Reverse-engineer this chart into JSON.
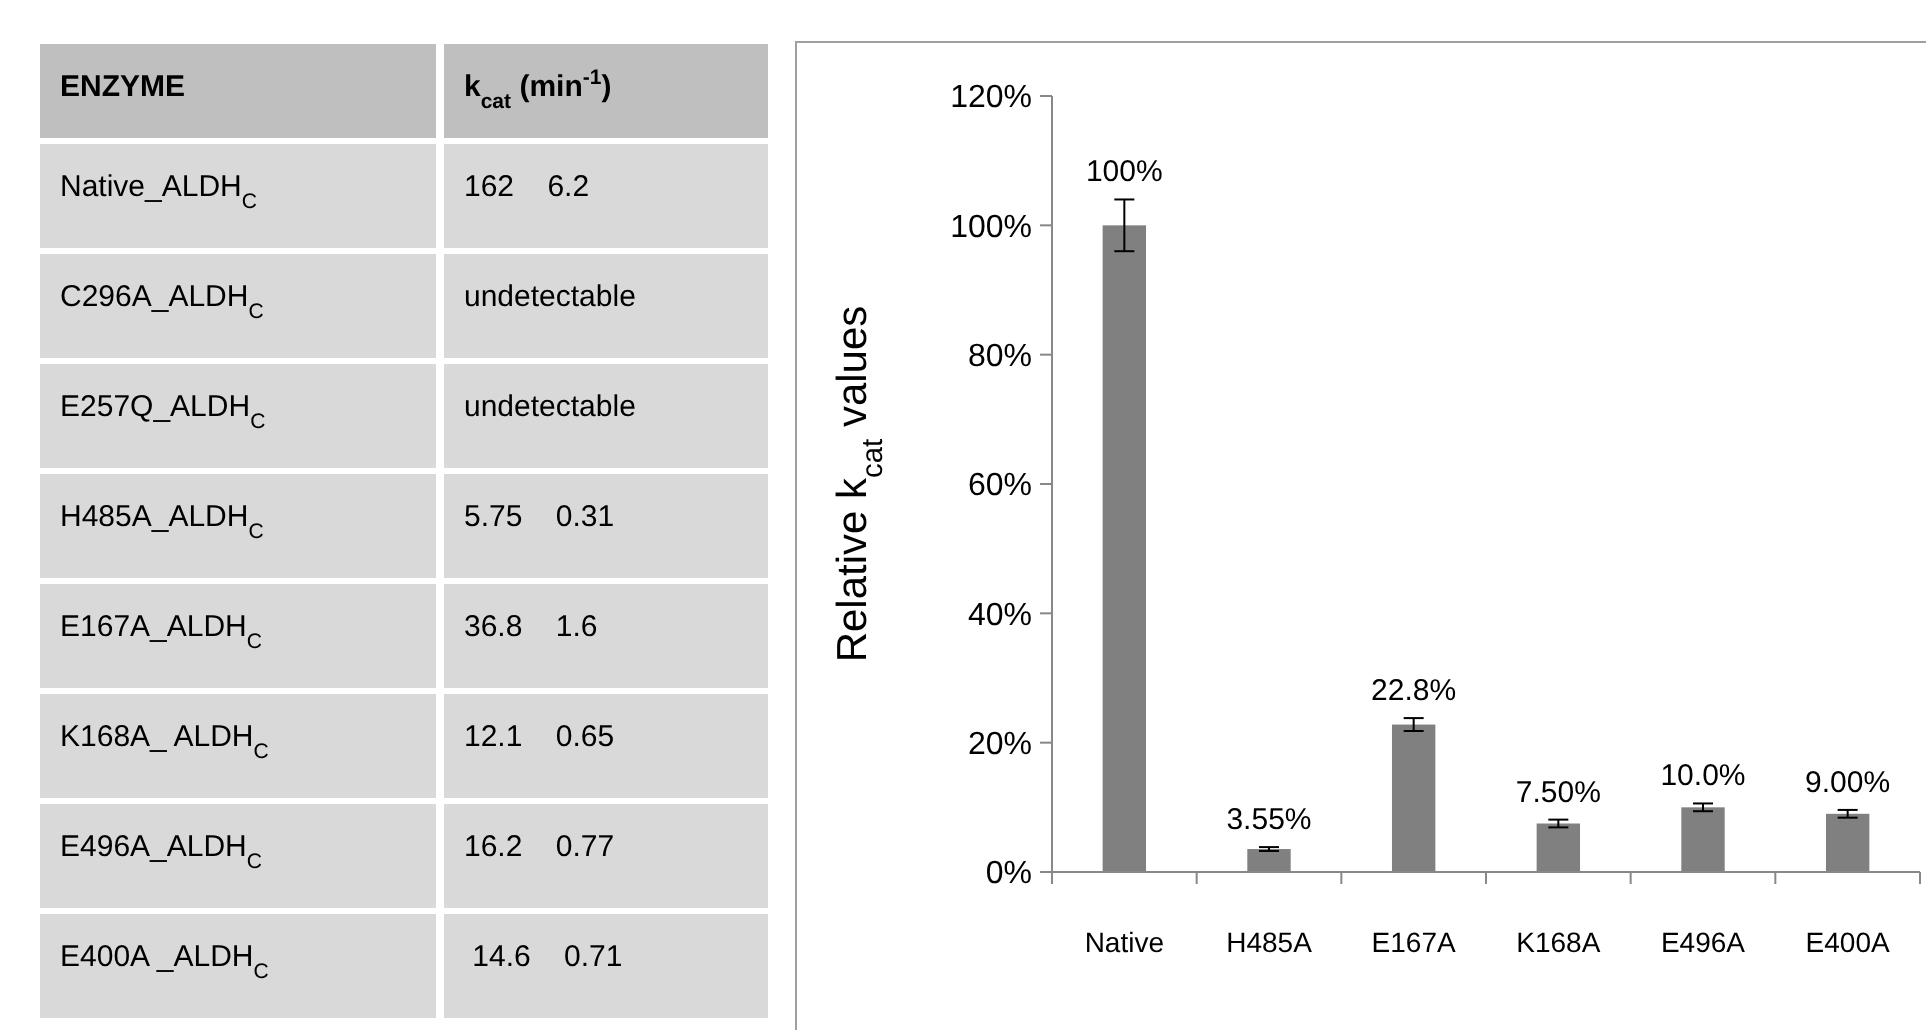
{
  "chart_data": [
    {
      "type": "other",
      "categories": [
        "ENZYME",
        "k$_{cat}$ (min$^{-1}$)"
      ],
      "annotations": [
        [
          "Native_ALDH$_{C}$",
          "162    6.2"
        ],
        [
          "C296A_ALDH$_{C}$",
          "undetectable"
        ],
        [
          "E257Q_ALDH$_{C}$",
          "undetectable"
        ],
        [
          "H485A_ALDH$_{C}$",
          "5.75    0.31"
        ],
        [
          "E167A_ALDH$_{C}$",
          "36.8    1.6"
        ],
        [
          "K168A_ ALDH$_{C}$",
          "12.1    0.65"
        ],
        [
          "E496A_ALDH$_{C}$",
          "16.2    0.77"
        ],
        [
          "E400A _ALDH$_{C}$",
          " 14.6    0.71"
        ]
      ]
    },
    {
      "type": "bar",
      "ylabel": "Relative k$_{cat}$  values",
      "categories": [
        "Native",
        "H485A",
        "E167A",
        "K168A",
        "E496A",
        "E400A"
      ],
      "values": [
        100,
        3.55,
        22.8,
        7.5,
        10,
        9
      ],
      "errors": [
        4,
        0.3,
        1,
        0.6,
        0.6,
        0.6
      ],
      "value_labels": [
        "100%",
        "3.55%",
        "22.8%",
        "7.50%",
        "10.0%",
        "9.00%"
      ],
      "color": "#808080",
      "ylim": [
        0,
        120
      ],
      "yticks": [
        {
          "value": 0,
          "label": "0%"
        },
        {
          "value": 20,
          "label": "20%"
        },
        {
          "value": 40,
          "label": "40%"
        },
        {
          "value": 60,
          "label": "60%"
        },
        {
          "value": 80,
          "label": "80%"
        },
        {
          "value": 100,
          "label": "100%"
        },
        {
          "value": 120,
          "label": "120%"
        }
      ],
      "grid": false
    }
  ]
}
